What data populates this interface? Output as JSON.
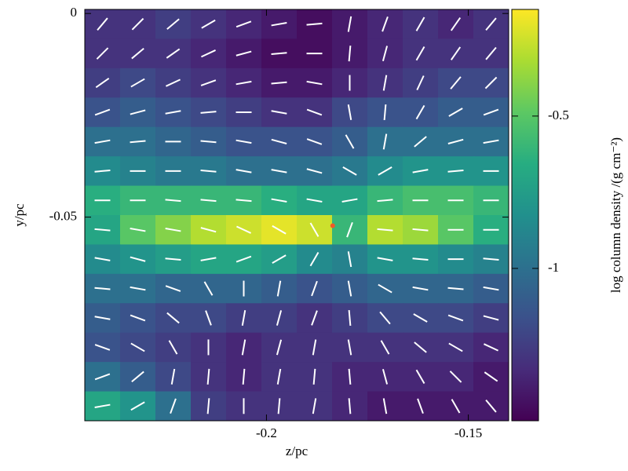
{
  "chart_data": {
    "type": "heatmap",
    "x_label": "z/pc",
    "y_label": "y/pc",
    "colorbar_label": "log column density /(g cm⁻²)",
    "colormap": "viridis",
    "xlim": [
      -0.245,
      -0.14
    ],
    "ylim": [
      -0.1,
      0.001
    ],
    "xticks": [
      -0.2,
      -0.15
    ],
    "yticks": [
      0,
      -0.05
    ],
    "clim": [
      -1.5,
      -0.15
    ],
    "cticks": [
      -0.5,
      -1
    ],
    "z": [
      [
        -1.3,
        -1.3,
        -1.25,
        -1.3,
        -1.35,
        -1.4,
        -1.45,
        -1.4,
        -1.35,
        -1.3,
        -1.35,
        -1.3
      ],
      [
        -1.3,
        -1.3,
        -1.3,
        -1.35,
        -1.4,
        -1.45,
        -1.45,
        -1.4,
        -1.35,
        -1.3,
        -1.3,
        -1.3
      ],
      [
        -1.25,
        -1.2,
        -1.25,
        -1.3,
        -1.35,
        -1.4,
        -1.4,
        -1.35,
        -1.3,
        -1.25,
        -1.2,
        -1.2
      ],
      [
        -1.15,
        -1.1,
        -1.15,
        -1.2,
        -1.25,
        -1.3,
        -1.3,
        -1.2,
        -1.15,
        -1.15,
        -1.1,
        -1.1
      ],
      [
        -1.0,
        -1.0,
        -1.05,
        -1.1,
        -1.15,
        -1.15,
        -1.15,
        -1.1,
        -1.0,
        -1.0,
        -1.0,
        -1.0
      ],
      [
        -0.85,
        -0.9,
        -0.95,
        -0.95,
        -1.0,
        -1.0,
        -1.0,
        -0.95,
        -0.85,
        -0.8,
        -0.8,
        -0.8
      ],
      [
        -0.65,
        -0.6,
        -0.6,
        -0.6,
        -0.6,
        -0.65,
        -0.7,
        -0.7,
        -0.6,
        -0.55,
        -0.55,
        -0.6
      ],
      [
        -0.7,
        -0.5,
        -0.4,
        -0.3,
        -0.25,
        -0.2,
        -0.25,
        -0.6,
        -0.3,
        -0.35,
        -0.5,
        -0.65
      ],
      [
        -0.85,
        -0.8,
        -0.75,
        -0.7,
        -0.7,
        -0.75,
        -0.85,
        -0.9,
        -0.8,
        -0.8,
        -0.85,
        -0.9
      ],
      [
        -1.0,
        -1.0,
        -1.05,
        -1.05,
        -1.05,
        -1.1,
        -1.15,
        -1.1,
        -1.05,
        -1.05,
        -1.05,
        -1.1
      ],
      [
        -1.1,
        -1.15,
        -1.2,
        -1.2,
        -1.25,
        -1.25,
        -1.3,
        -1.25,
        -1.2,
        -1.2,
        -1.2,
        -1.25
      ],
      [
        -1.15,
        -1.2,
        -1.25,
        -1.3,
        -1.35,
        -1.3,
        -1.3,
        -1.3,
        -1.3,
        -1.3,
        -1.3,
        -1.35
      ],
      [
        -1.0,
        -1.1,
        -1.2,
        -1.3,
        -1.35,
        -1.3,
        -1.3,
        -1.35,
        -1.35,
        -1.35,
        -1.35,
        -1.4
      ],
      [
        -0.7,
        -0.8,
        -1.0,
        -1.25,
        -1.3,
        -1.3,
        -1.3,
        -1.35,
        -1.4,
        -1.4,
        -1.4,
        -1.4
      ]
    ],
    "vector_angles": [
      [
        50,
        45,
        40,
        30,
        20,
        10,
        5,
        80,
        70,
        60,
        55,
        50
      ],
      [
        45,
        40,
        35,
        25,
        15,
        5,
        0,
        85,
        75,
        60,
        55,
        50
      ],
      [
        35,
        30,
        25,
        20,
        10,
        5,
        170,
        90,
        80,
        65,
        50,
        45
      ],
      [
        20,
        15,
        10,
        5,
        0,
        170,
        160,
        100,
        85,
        60,
        30,
        20
      ],
      [
        10,
        5,
        0,
        175,
        170,
        165,
        160,
        120,
        80,
        40,
        15,
        10
      ],
      [
        5,
        0,
        0,
        175,
        170,
        170,
        165,
        150,
        30,
        10,
        5,
        0
      ],
      [
        0,
        0,
        175,
        175,
        175,
        170,
        170,
        10,
        5,
        0,
        0,
        0
      ],
      [
        175,
        170,
        170,
        165,
        155,
        150,
        120,
        70,
        175,
        175,
        0,
        0
      ],
      [
        170,
        165,
        175,
        10,
        20,
        30,
        60,
        100,
        170,
        175,
        0,
        175
      ],
      [
        175,
        170,
        160,
        120,
        90,
        80,
        70,
        100,
        150,
        170,
        175,
        170
      ],
      [
        170,
        160,
        140,
        110,
        80,
        75,
        70,
        95,
        130,
        150,
        160,
        165
      ],
      [
        160,
        150,
        120,
        90,
        80,
        75,
        80,
        100,
        120,
        140,
        150,
        155
      ],
      [
        20,
        40,
        80,
        85,
        85,
        80,
        85,
        95,
        105,
        120,
        135,
        145
      ],
      [
        10,
        30,
        70,
        85,
        90,
        85,
        80,
        95,
        100,
        110,
        120,
        130
      ]
    ],
    "vector_color": "#ffffff",
    "sink": {
      "x": -0.1836,
      "y": -0.0521,
      "color": "#f05a28"
    }
  }
}
